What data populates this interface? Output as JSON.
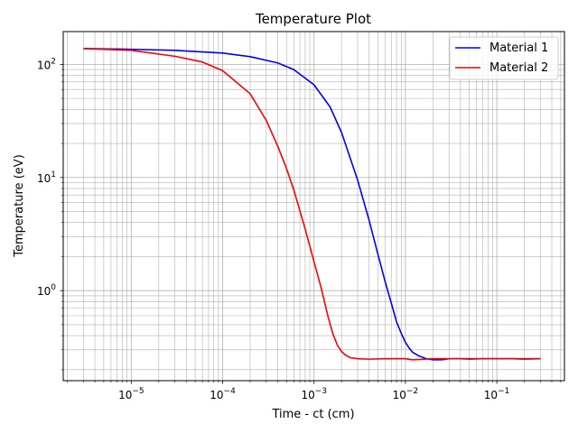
{
  "chart_data": {
    "type": "line",
    "title": "Temperature Plot",
    "xlabel": "Time - ct (cm)",
    "ylabel": "Temperature (eV)",
    "xscale": "log",
    "yscale": "log",
    "xlim": [
      1.8e-06,
      0.55
    ],
    "ylim": [
      0.16,
      195
    ],
    "grid": "both (major and minor)",
    "legend_position": "top-right",
    "x_ticks": [
      {
        "value": 1e-05,
        "base": "10",
        "exp": "−5"
      },
      {
        "value": 0.0001,
        "base": "10",
        "exp": "−4"
      },
      {
        "value": 0.001,
        "base": "10",
        "exp": "−3"
      },
      {
        "value": 0.01,
        "base": "10",
        "exp": "−2"
      },
      {
        "value": 0.1,
        "base": "10",
        "exp": "−1"
      }
    ],
    "y_ticks": [
      {
        "value": 1,
        "base": "10",
        "exp": "0"
      },
      {
        "value": 10,
        "base": "10",
        "exp": "1"
      },
      {
        "value": 100,
        "base": "10",
        "exp": "2"
      }
    ],
    "series": [
      {
        "name": "Material 1",
        "color": "#0000ff",
        "x": [
          3e-06,
          1e-05,
          3e-05,
          0.0001,
          0.0002,
          0.0004,
          0.0006,
          0.001,
          0.0015,
          0.002,
          0.003,
          0.004,
          0.005,
          0.006,
          0.007,
          0.008,
          0.009,
          0.01,
          0.011,
          0.012,
          0.014,
          0.017,
          0.02,
          0.025,
          0.03,
          0.04,
          0.05,
          0.07,
          0.1,
          0.15,
          0.2,
          0.3
        ],
        "y": [
          138,
          136,
          133,
          126,
          117,
          103,
          90,
          66,
          42,
          25,
          9.5,
          4.2,
          2.1,
          1.2,
          0.78,
          0.53,
          0.42,
          0.35,
          0.31,
          0.285,
          0.265,
          0.25,
          0.245,
          0.245,
          0.25,
          0.25,
          0.248,
          0.25,
          0.25,
          0.25,
          0.248,
          0.25
        ]
      },
      {
        "name": "Material 2",
        "color": "#ff0000",
        "x": [
          3e-06,
          1e-05,
          3e-05,
          6e-05,
          0.0001,
          0.0002,
          0.0003,
          0.0004,
          0.0005,
          0.0006,
          0.0008,
          0.001,
          0.0012,
          0.0014,
          0.0016,
          0.0018,
          0.002,
          0.0022,
          0.0025,
          0.003,
          0.004,
          0.006,
          0.01,
          0.012,
          0.02,
          0.05,
          0.1,
          0.3
        ],
        "y": [
          138,
          133,
          118,
          105,
          88,
          55,
          32,
          19,
          12,
          7.8,
          3.5,
          1.8,
          1.05,
          0.62,
          0.42,
          0.33,
          0.29,
          0.27,
          0.255,
          0.25,
          0.248,
          0.25,
          0.25,
          0.245,
          0.25,
          0.25,
          0.25,
          0.25
        ]
      }
    ]
  }
}
